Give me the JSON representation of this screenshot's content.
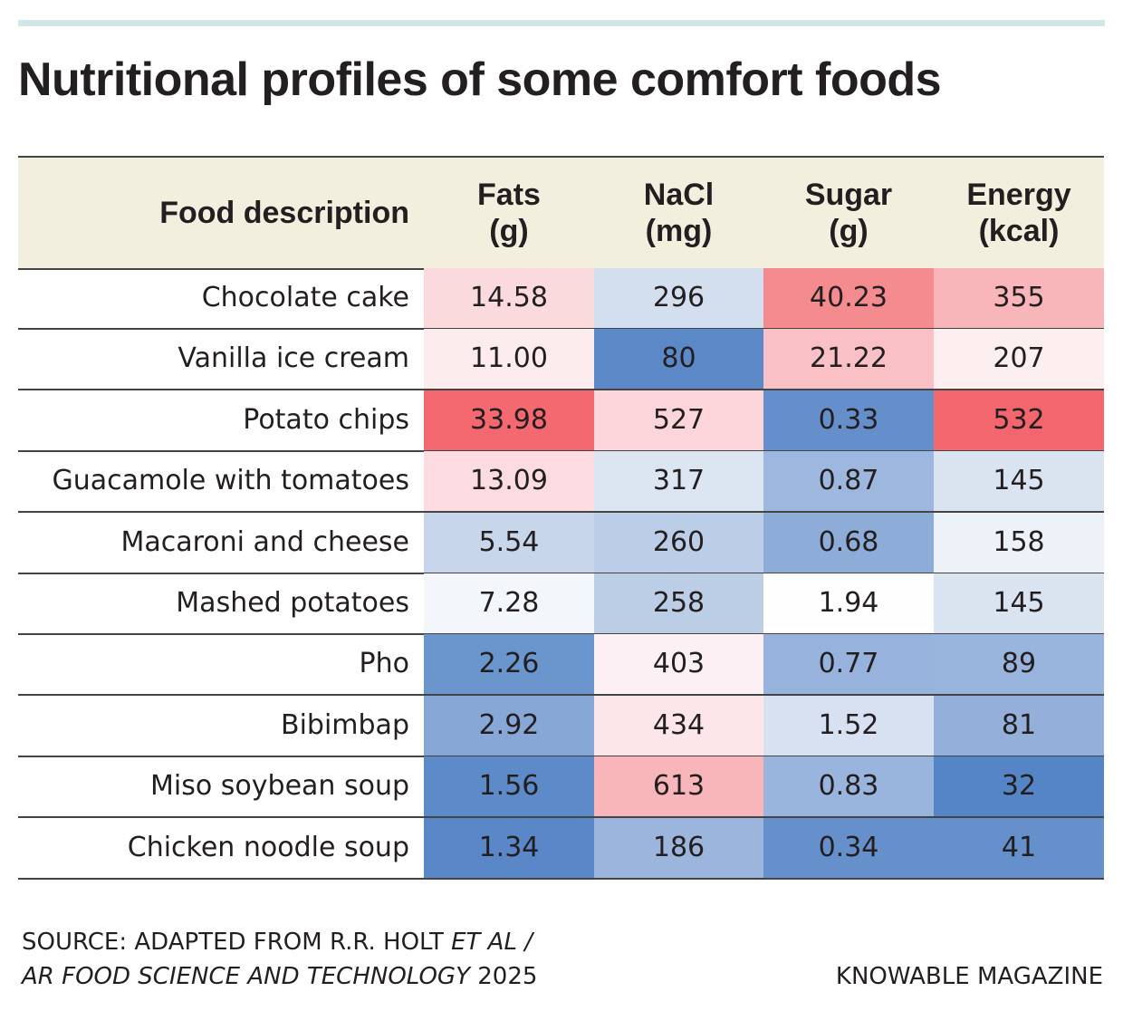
{
  "header": {
    "title": "Nutritional profiles of some comfort foods"
  },
  "table": {
    "header_color": "#f3efdf",
    "columns": [
      {
        "name": "Food description"
      },
      {
        "name": "Fats",
        "unit": "(g)"
      },
      {
        "name": "NaCl",
        "unit": "(mg)"
      },
      {
        "name": "Sugar",
        "unit": "(g)"
      },
      {
        "name": "Energy",
        "unit": "(kcal)"
      }
    ],
    "rows": [
      {
        "food": "Chocolate cake",
        "cells": [
          "14.58",
          "296",
          "40.23",
          "355"
        ],
        "colors": [
          "#fadadd",
          "#d3deee",
          "#f48b8e",
          "#f8b5ba"
        ]
      },
      {
        "food": "Vanilla ice cream",
        "cells": [
          "11.00",
          "80",
          "21.22",
          "207"
        ],
        "colors": [
          "#fdecee",
          "#5b89c8",
          "#f9c1c5",
          "#fdeef0"
        ]
      },
      {
        "food": "Potato chips",
        "cells": [
          "33.98",
          "527",
          "0.33",
          "532"
        ],
        "colors": [
          "#f4686f",
          "#fbd5d9",
          "#648fcb",
          "#f4666d"
        ]
      },
      {
        "food": "Guacamole with tomatoes",
        "cells": [
          "13.09",
          "317",
          "0.87",
          "145"
        ],
        "colors": [
          "#fcdce0",
          "#dce5f2",
          "#9db7de",
          "#dae4f1"
        ]
      },
      {
        "food": "Macaroni and cheese",
        "cells": [
          "5.54",
          "260",
          "0.68",
          "158"
        ],
        "colors": [
          "#c8d6eb",
          "#bccde7",
          "#8eacd8",
          "#edf1f8"
        ]
      },
      {
        "food": "Mashed potatoes",
        "cells": [
          "7.28",
          "258",
          "1.94",
          "145"
        ],
        "colors": [
          "#f3f6fb",
          "#bccde6",
          "#fefeff",
          "#dae4f1"
        ]
      },
      {
        "food": "Pho",
        "cells": [
          "2.26",
          "403",
          "0.77",
          "89"
        ],
        "colors": [
          "#6b95cd",
          "#fdf0f5",
          "#97b2dc",
          "#9ab5dd"
        ]
      },
      {
        "food": "Bibimbap",
        "cells": [
          "2.92",
          "434",
          "1.52",
          "81"
        ],
        "colors": [
          "#87a7d6",
          "#fde6ea",
          "#d8e1f1",
          "#94b0da"
        ]
      },
      {
        "food": "Miso soybean soup",
        "cells": [
          "1.56",
          "613",
          "0.83",
          "32"
        ],
        "colors": [
          "#5d8ac8",
          "#f8b5ba",
          "#99b4dd",
          "#5585c6"
        ]
      },
      {
        "food": "Chicken noodle soup",
        "cells": [
          "1.34",
          "186",
          "0.34",
          "41"
        ],
        "colors": [
          "#5987c7",
          "#9bb5dd",
          "#6690cc",
          "#6590cb"
        ]
      }
    ]
  },
  "footer": {
    "source_line1": [
      "SOURCE: ADAPTED FROM R.R. HOLT",
      "ET AL /"
    ],
    "source_line2": [
      "AR FOOD SCIENCE AND TECHNOLOGY",
      "2025"
    ],
    "credit": "KNOWABLE MAGAZINE"
  }
}
